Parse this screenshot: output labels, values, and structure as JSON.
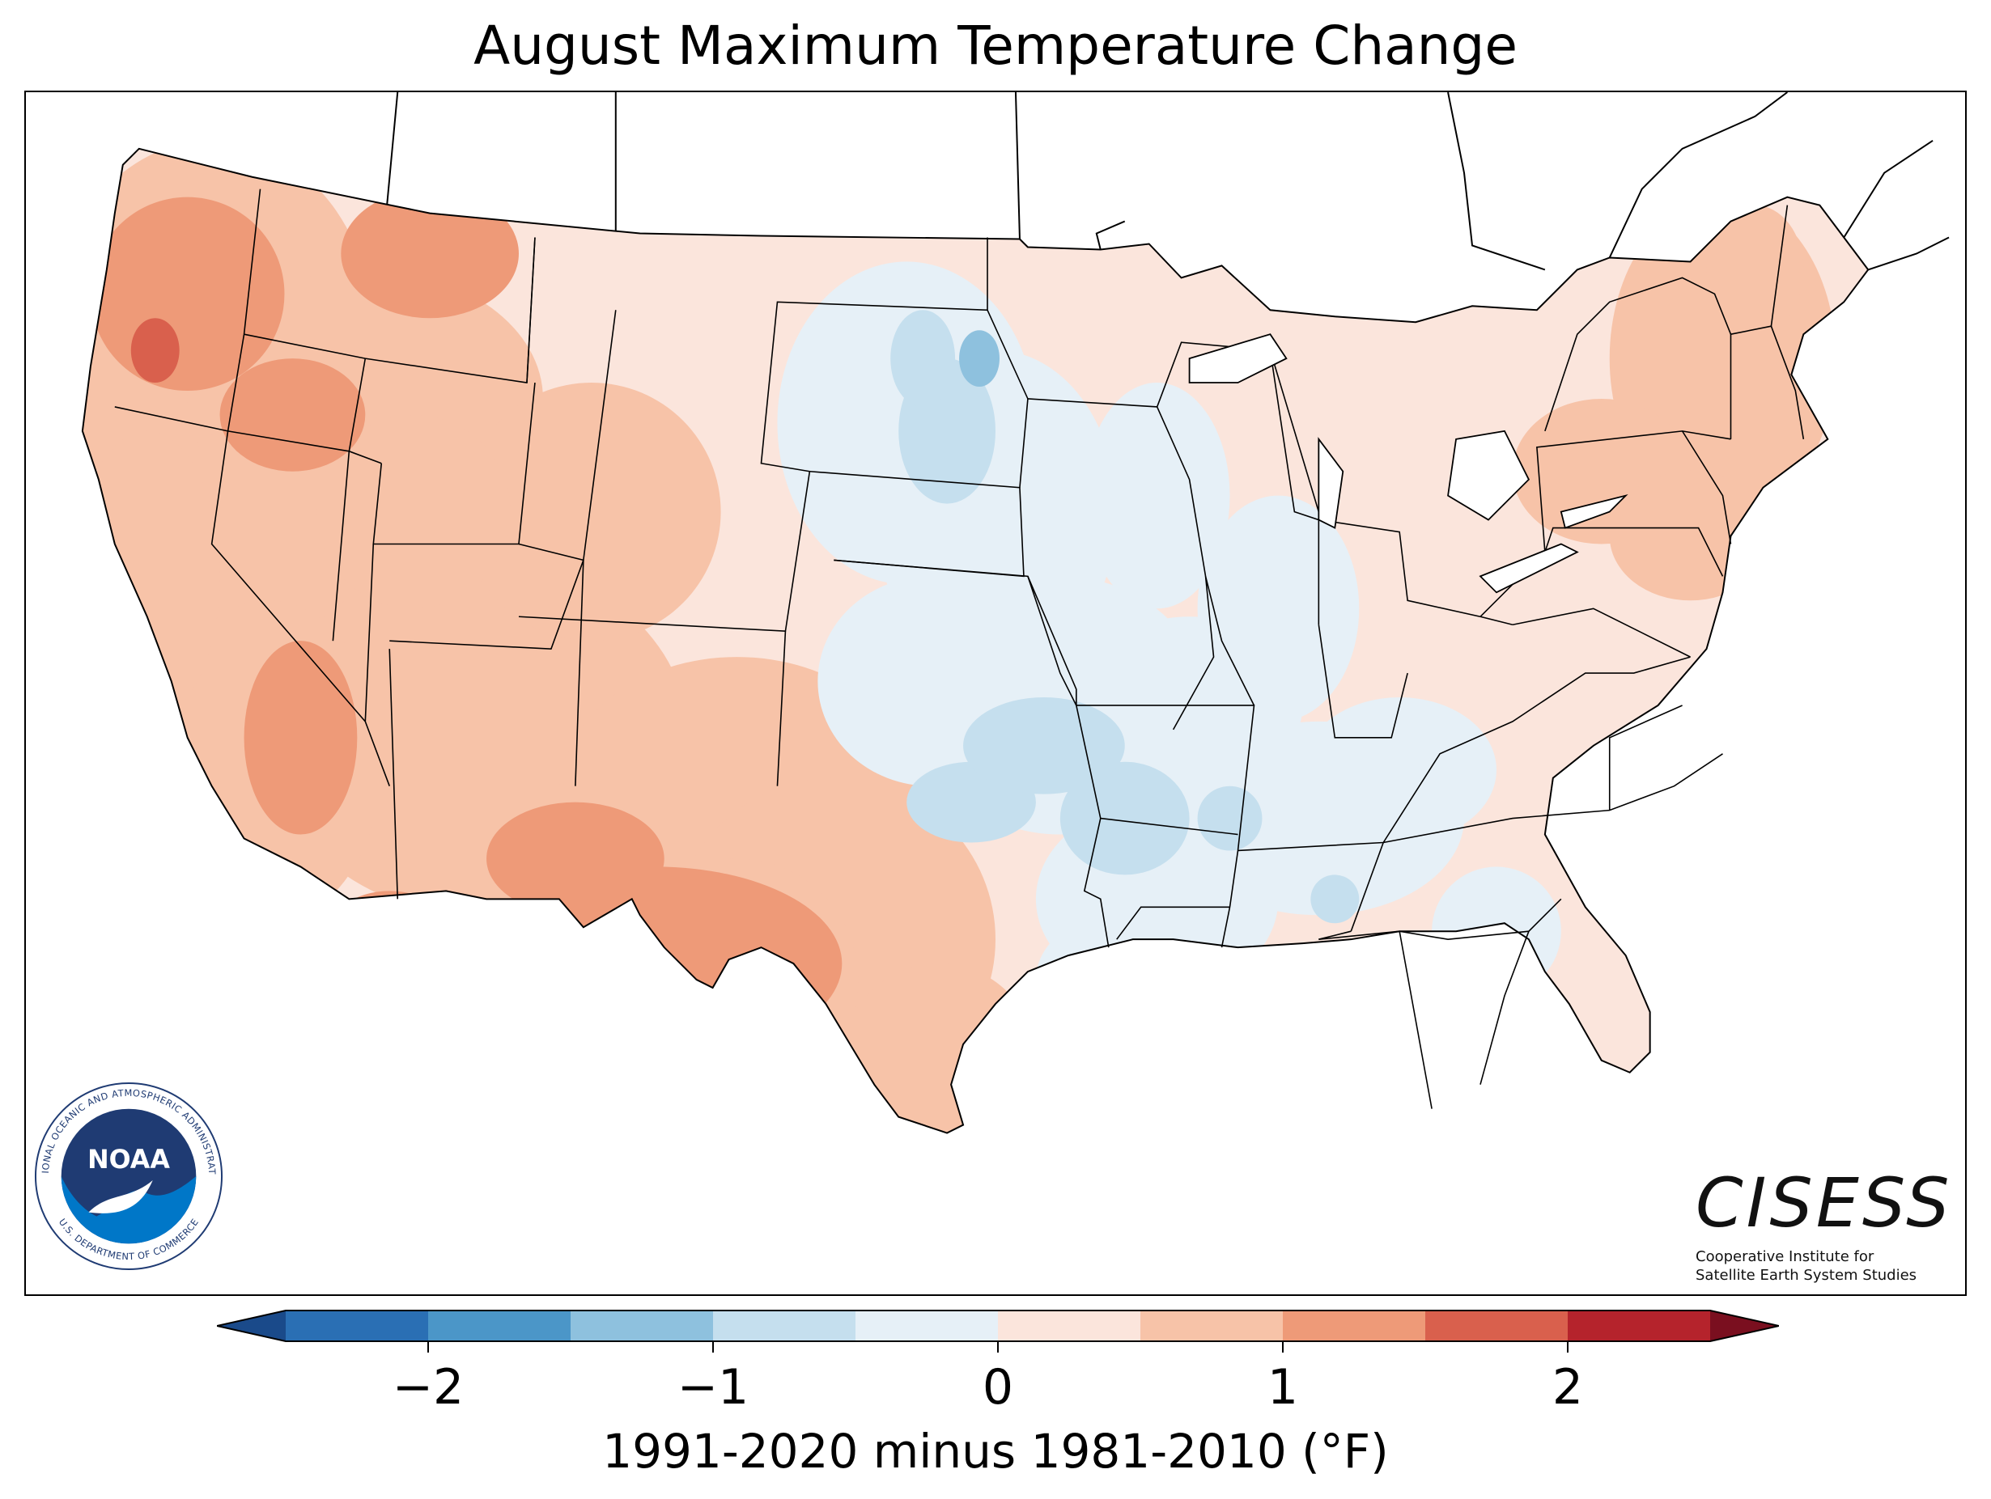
{
  "title": "August Maximum Temperature Change",
  "colorbar": {
    "label": "1991-2020 minus 1981-2010 (°F)",
    "ticks": [
      "−2",
      "−1",
      "0",
      "1",
      "2"
    ],
    "tick_values": [
      -2,
      -1,
      0,
      1,
      2
    ],
    "bounds": [
      -2.5,
      -2,
      -1.5,
      -1,
      -0.5,
      0,
      0.5,
      1,
      1.5,
      2,
      2.5
    ],
    "colors": [
      "#2a6fb4",
      "#4b96c8",
      "#8ec1de",
      "#c5dfee",
      "#e6f0f7",
      "#fbe5dc",
      "#f7c3a8",
      "#ee9a78",
      "#d9604d",
      "#b5232c"
    ],
    "under_color": "#1a4a8a",
    "over_color": "#7a0f1f"
  },
  "noaa_logo": {
    "center_text": "NOAA",
    "ring_top": "NATIONAL OCEANIC AND ATMOSPHERIC ADMINISTRATION",
    "ring_bottom": "U.S. DEPARTMENT OF COMMERCE"
  },
  "cisess_logo": {
    "wordmark": "CISESS",
    "line1": "Cooperative Institute for",
    "line2": "Satellite Earth System Studies"
  }
}
